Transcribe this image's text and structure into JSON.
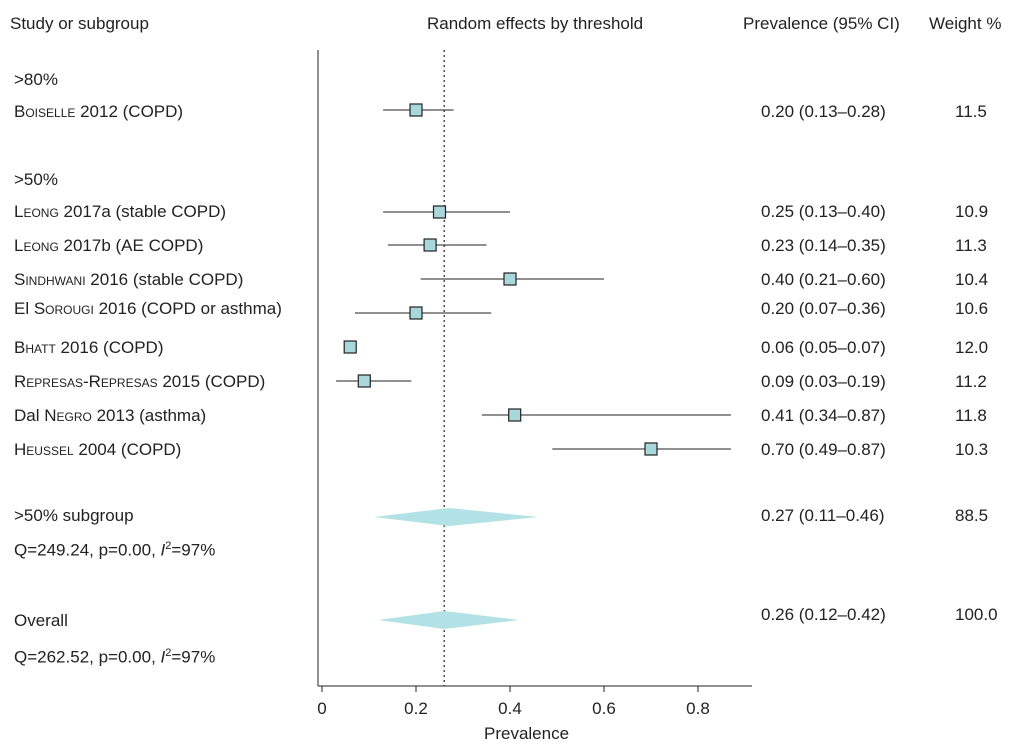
{
  "headers": {
    "study": "Study or subgroup",
    "plot": "Random effects by threshold",
    "prevalence": "Prevalence (95% CI)",
    "weight": "Weight %"
  },
  "group_labels": {
    "g80": ">80%",
    "g50": ">50%"
  },
  "studies": [
    {
      "author": "Boiselle",
      "rest": " 2012 (COPD)",
      "est": 0.2,
      "lo": 0.13,
      "hi": 0.28,
      "ci_text": "0.20 (0.13–0.28)",
      "weight": "11.5"
    },
    {
      "author": "Leong",
      "rest": " 2017a (stable COPD)",
      "est": 0.25,
      "lo": 0.13,
      "hi": 0.4,
      "ci_text": "0.25 (0.13–0.40)",
      "weight": "10.9"
    },
    {
      "author": "Leong",
      "rest": " 2017b (AE COPD)",
      "est": 0.23,
      "lo": 0.14,
      "hi": 0.35,
      "ci_text": "0.23 (0.14–0.35)",
      "weight": "11.3"
    },
    {
      "author": "Sindhwani",
      "rest": " 2016 (stable COPD)",
      "est": 0.4,
      "lo": 0.21,
      "hi": 0.6,
      "ci_text": "0.40 (0.21–0.60)",
      "weight": "10.4"
    },
    {
      "prefix": "El ",
      "author": "Sorougi",
      "rest": " 2016 (COPD or asthma)",
      "est": 0.2,
      "lo": 0.07,
      "hi": 0.36,
      "ci_text": "0.20 (0.07–0.36)",
      "weight": "10.6"
    },
    {
      "author": "Bhatt",
      "rest": " 2016 (COPD)",
      "est": 0.06,
      "lo": 0.05,
      "hi": 0.07,
      "ci_text": "0.06 (0.05–0.07)",
      "weight": "12.0"
    },
    {
      "author": "Represas-Represas",
      "rest": " 2015 (COPD)",
      "est": 0.09,
      "lo": 0.03,
      "hi": 0.19,
      "ci_text": "0.09 (0.03–0.19)",
      "weight": "11.2"
    },
    {
      "prefix": "Dal ",
      "author": "Negro",
      "rest": " 2013 (asthma)",
      "est": 0.41,
      "lo": 0.34,
      "hi": 0.87,
      "ci_text": "0.41 (0.34–0.87)",
      "weight": "11.8"
    },
    {
      "author": "Heussel",
      "rest": " 2004 (COPD)",
      "est": 0.7,
      "lo": 0.49,
      "hi": 0.87,
      "ci_text": "0.70 (0.49–0.87)",
      "weight": "10.3"
    }
  ],
  "subgroup": {
    "label": ">50% subgroup",
    "stats_prefix": "Q=249.24, p=0.00, ",
    "i_letter": "I",
    "i_sup": "2",
    "i_suffix": "=97%",
    "est": 0.27,
    "lo": 0.11,
    "hi": 0.46,
    "ci_text": "0.27 (0.11–0.46)",
    "weight": "88.5"
  },
  "overall": {
    "label": "Overall",
    "stats_prefix": "Q=262.52, p=0.00, ",
    "i_letter": "I",
    "i_sup": "2",
    "i_suffix": "=97%",
    "est": 0.26,
    "lo": 0.12,
    "hi": 0.42,
    "ci_text": "0.26 (0.12–0.42)",
    "weight": "100.0"
  },
  "chart_data": {
    "type": "forest",
    "title": "Random effects by threshold",
    "xlabel": "Prevalence",
    "xlim": [
      0,
      0.9
    ],
    "x_ticks": [
      "0",
      "0.2",
      "0.4",
      "0.6",
      "0.8"
    ],
    "reference_line": 0.26,
    "colors": {
      "box_fill": "#a9d8dc",
      "diamond_fill": "#b2e2e5",
      "line": "#222222"
    }
  }
}
